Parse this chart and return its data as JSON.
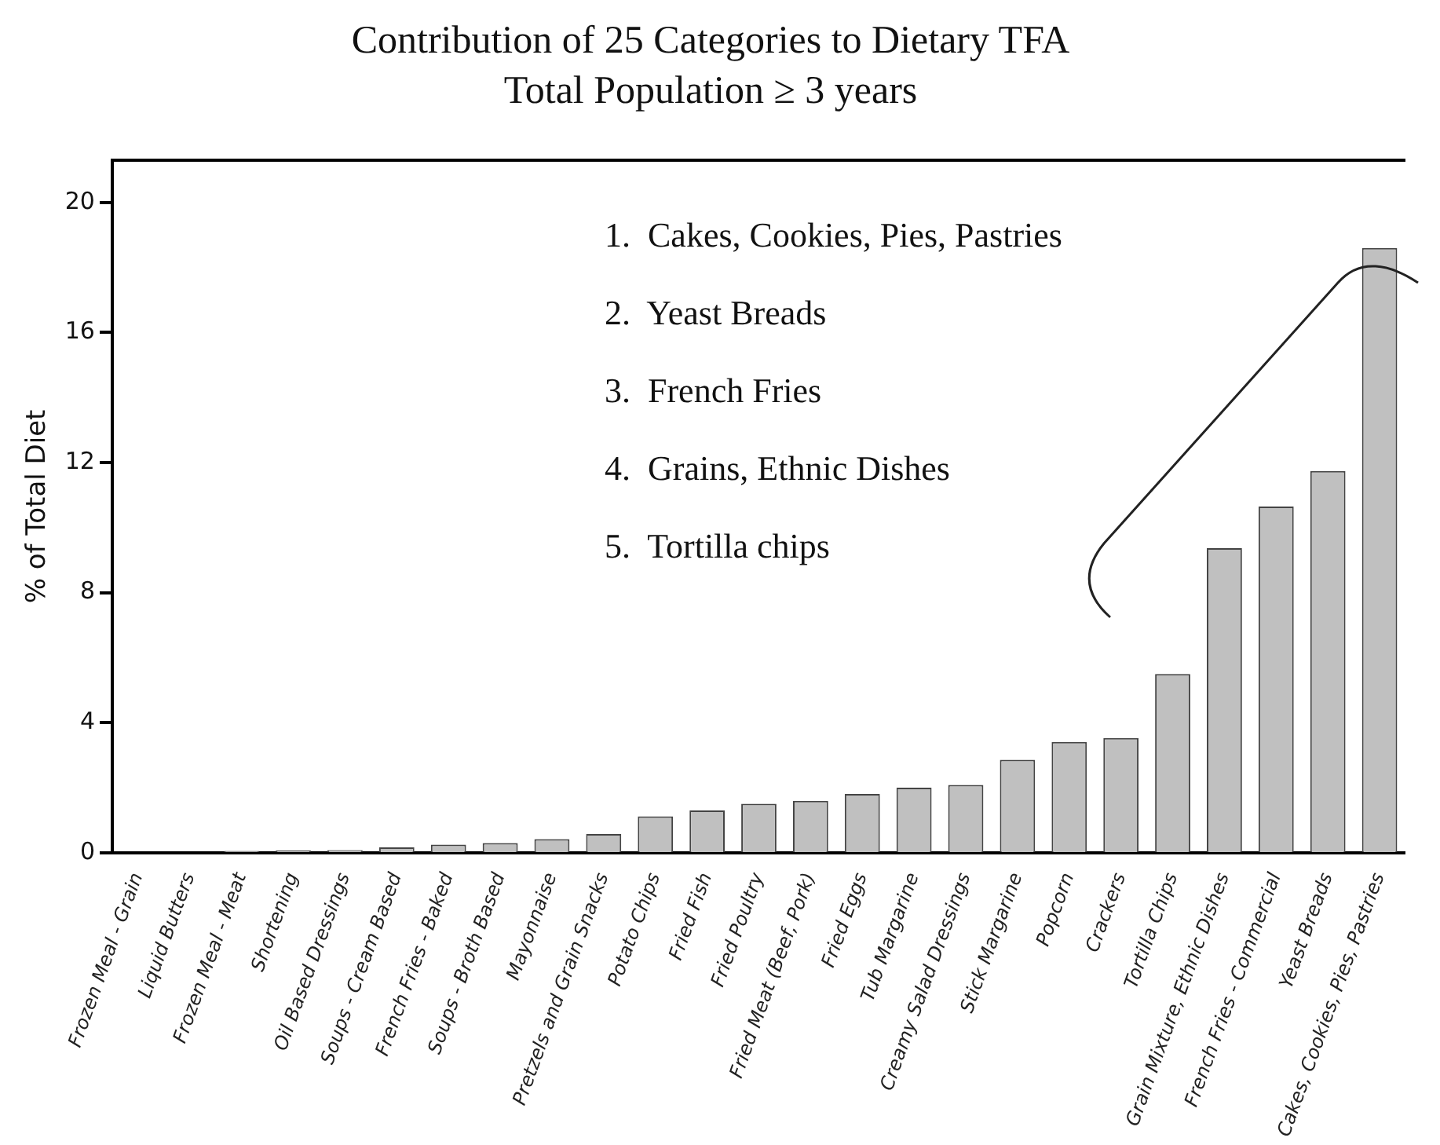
{
  "chart_data": {
    "type": "bar",
    "title": "Contribution of 25 Categories to Dietary TFA",
    "subtitle": "Total Population ≥ 3 years",
    "ylabel": "% of Total Diet",
    "categories": [
      "Frozen Meal - Grain",
      "Liquid Butters",
      "Frozen Meal - Meat",
      "Shortening",
      "Oil Based Dressings",
      "Soups - Cream Based",
      "French Fries - Baked",
      "Soups - Broth Based",
      "Mayonnaise",
      "Pretzels and Grain Snacks",
      "Potato Chips",
      "Fried Fish",
      "Fried Poultry",
      "Fried Meat (Beef, Pork)",
      "Fried Eggs",
      "Tub Margarine",
      "Creamy Salad Dressings",
      "Stick Margarine",
      "Popcorn",
      "Crackers",
      "Tortilla Chips",
      "Grain Mixture, Ethnic Dishes",
      "French Fries - Commercial",
      "Yeast Breads",
      "Cakes, Cookies, Pies, Pastries"
    ],
    "values": [
      0,
      0,
      0.06,
      0.07,
      0.08,
      0.17,
      0.25,
      0.3,
      0.42,
      0.58,
      1.12,
      1.3,
      1.51,
      1.6,
      1.81,
      2.0,
      2.09,
      2.86,
      3.41,
      3.53,
      5.5,
      9.37,
      10.65,
      11.74,
      18.6
    ],
    "color": "#c0c0c0",
    "ylim": [
      0,
      21.3
    ],
    "yticks": [
      0,
      4,
      8,
      12,
      16,
      20
    ],
    "grid": false,
    "legend": false,
    "annotations": [
      "1.  Cakes, Cookies, Pies, Pastries",
      "2.  Yeast Breads",
      "3.  French Fries",
      "4.  Grains, Ethnic Dishes",
      "5.  Tortilla chips"
    ]
  }
}
